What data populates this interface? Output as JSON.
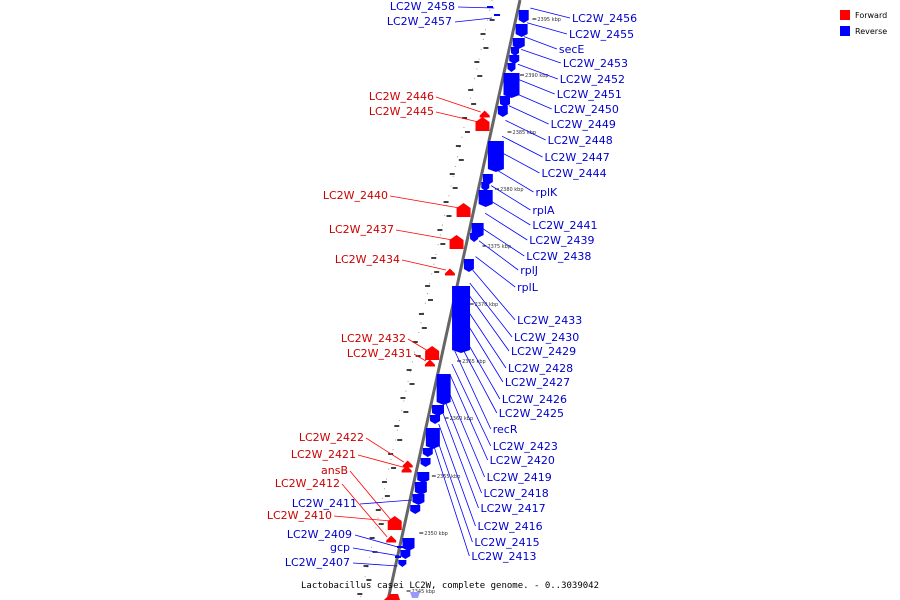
{
  "title": "Lactobacillus casei LC2W, complete genome. - 0..3039042",
  "legend": [
    {
      "label": "Forward",
      "color": "#ff0000"
    },
    {
      "label": "Reverse",
      "color": "#0000ff"
    }
  ],
  "colors": {
    "forward": "#ff0000",
    "reverse": "#0000ff",
    "backbone": "#666666"
  },
  "kbp_marks": [
    "2395 kbp",
    "2390 kbp",
    "2385 kbp",
    "2380 kbp",
    "2375 kbp",
    "2370 kbp",
    "2365 kbp",
    "2360 kbp",
    "2355 kbp",
    "2350 kbp",
    "2345 kbp"
  ],
  "forward_genes": [
    "LC2W_2446",
    "LC2W_2445",
    "LC2W_2440",
    "LC2W_2437",
    "LC2W_2434",
    "LC2W_2432",
    "LC2W_2431",
    "LC2W_2422",
    "LC2W_2421",
    "ansB",
    "LC2W_2412",
    "LC2W_2410"
  ],
  "reverse_genes_left": [
    "LC2W_2458",
    "LC2W_2457",
    "LC2W_2411",
    "LC2W_2409",
    "gcp",
    "LC2W_2407"
  ],
  "reverse_genes_right": [
    "LC2W_2456",
    "LC2W_2455",
    "secE",
    "LC2W_2453",
    "LC2W_2452",
    "LC2W_2451",
    "LC2W_2450",
    "LC2W_2449",
    "LC2W_2448",
    "LC2W_2447",
    "LC2W_2444",
    "rplK",
    "rplA",
    "LC2W_2441",
    "LC2W_2439",
    "LC2W_2438",
    "rplJ",
    "rplL",
    "LC2W_2433",
    "LC2W_2430",
    "LC2W_2429",
    "LC2W_2428",
    "LC2W_2427",
    "LC2W_2426",
    "LC2W_2425",
    "recR",
    "LC2W_2423",
    "LC2W_2420",
    "LC2W_2419",
    "LC2W_2418",
    "LC2W_2417",
    "LC2W_2416",
    "LC2W_2415",
    "LC2W_2413"
  ]
}
